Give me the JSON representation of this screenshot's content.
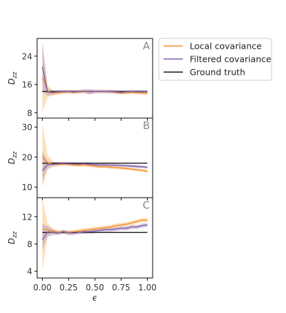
{
  "chart_data": {
    "type": "line",
    "xlabel": "ϵ",
    "colors": {
      "local": "#f28c28",
      "local_band": "#fbc98c",
      "filtered": "#7e5aa6",
      "filtered_band": "#b69cc4",
      "truth": "#111111"
    },
    "legend": {
      "placement": "outside-right",
      "entries": [
        {
          "label": "Local covariance",
          "color": "#f28c28"
        },
        {
          "label": "Filtered covariance",
          "color": "#7e5aa6"
        },
        {
          "label": "Ground truth",
          "color": "#111111"
        }
      ]
    },
    "x_ticks": [
      "0.00",
      "0.25",
      "0.50",
      "0.75",
      "1.00"
    ],
    "x_tick_values": [
      0,
      0.25,
      0.5,
      0.75,
      1.0
    ],
    "xlim": [
      -0.05,
      1.05
    ],
    "panels": [
      {
        "letter": "A",
        "ylabel": "D_zz",
        "ylim": [
          6.5,
          29
        ],
        "y_ticks": [
          "8",
          "16",
          "24"
        ],
        "y_tick_values": [
          8,
          16,
          24
        ],
        "truth": 14,
        "x": [
          0,
          0.05,
          0.1,
          0.15,
          0.2,
          0.25,
          0.3,
          0.35,
          0.4,
          0.45,
          0.5,
          0.55,
          0.6,
          0.65,
          0.7,
          0.75,
          0.8,
          0.85,
          0.9,
          0.95,
          1.0
        ],
        "series": [
          {
            "name": "Local covariance",
            "key": "local",
            "values": [
              18,
              14.2,
              13.5,
              13.7,
              13.8,
              13.9,
              13.8,
              13.9,
              14.0,
              13.9,
              14.0,
              14.0,
              14.0,
              13.9,
              13.8,
              13.6,
              13.7,
              13.8,
              13.7,
              13.6,
              13.5
            ],
            "lower": [
              8,
              12.5,
              12.8,
              13.1,
              13.3,
              13.4,
              13.3,
              13.4,
              13.5,
              13.4,
              13.5,
              13.5,
              13.5,
              13.4,
              13.3,
              13.1,
              13.2,
              13.3,
              13.2,
              13.1,
              13.0
            ],
            "upper": [
              28,
              15.9,
              14.2,
              14.3,
              14.3,
              14.4,
              14.3,
              14.4,
              14.5,
              14.4,
              14.5,
              14.5,
              14.5,
              14.4,
              14.3,
              14.1,
              14.2,
              14.3,
              14.2,
              14.1,
              14.0
            ]
          },
          {
            "name": "Filtered covariance",
            "key": "filtered",
            "values": [
              21,
              13.8,
              13.8,
              13.9,
              14.0,
              14.0,
              13.9,
              14.0,
              14.1,
              13.9,
              14.0,
              14.0,
              14.0,
              14.0,
              13.9,
              13.8,
              13.9,
              14.0,
              13.9,
              13.9,
              13.9
            ],
            "lower": [
              14,
              12.8,
              13.2,
              13.4,
              13.5,
              13.5,
              13.4,
              13.5,
              13.6,
              13.1,
              13.5,
              13.5,
              13.5,
              13.5,
              13.4,
              13.3,
              13.4,
              13.5,
              13.4,
              13.4,
              13.4
            ],
            "upper": [
              28,
              14.8,
              14.4,
              14.4,
              14.5,
              14.5,
              14.4,
              14.5,
              14.6,
              14.7,
              14.5,
              14.5,
              14.5,
              14.5,
              14.4,
              14.3,
              14.4,
              14.5,
              14.4,
              14.4,
              14.4
            ]
          }
        ]
      },
      {
        "letter": "B",
        "ylabel": "D_zz",
        "ylim": [
          6.5,
          33
        ],
        "y_ticks": [
          "10",
          "20",
          "30"
        ],
        "y_tick_values": [
          10,
          20,
          30
        ],
        "truth": 18,
        "x": [
          0,
          0.05,
          0.1,
          0.15,
          0.2,
          0.25,
          0.3,
          0.35,
          0.4,
          0.45,
          0.5,
          0.55,
          0.6,
          0.65,
          0.7,
          0.75,
          0.8,
          0.85,
          0.9,
          0.95,
          1.0
        ],
        "series": [
          {
            "name": "Local covariance",
            "key": "local",
            "values": [
              20,
              18.2,
              17.6,
              17.6,
              17.7,
              17.6,
              17.4,
              17.3,
              17.4,
              17.2,
              17.0,
              16.8,
              16.8,
              16.6,
              16.5,
              16.4,
              16.2,
              16.0,
              15.8,
              15.6,
              15.3
            ],
            "lower": [
              10,
              15.8,
              16.6,
              16.9,
              17.1,
              17.1,
              16.9,
              16.8,
              16.9,
              16.7,
              16.5,
              16.3,
              16.3,
              16.1,
              16.0,
              15.9,
              15.7,
              15.5,
              15.3,
              15.1,
              14.8
            ],
            "upper": [
              31,
              20.6,
              18.6,
              18.3,
              18.3,
              18.1,
              17.9,
              17.8,
              17.9,
              17.7,
              17.5,
              17.3,
              17.3,
              17.1,
              17.0,
              16.9,
              16.7,
              16.5,
              16.3,
              16.1,
              15.8
            ]
          },
          {
            "name": "Filtered covariance",
            "key": "filtered",
            "values": [
              15.5,
              17.5,
              17.6,
              17.8,
              17.9,
              17.8,
              17.7,
              17.7,
              17.8,
              17.6,
              17.5,
              17.4,
              17.4,
              17.3,
              17.3,
              17.2,
              17.1,
              17.0,
              16.9,
              16.8,
              16.6
            ],
            "lower": [
              12,
              16.4,
              17.0,
              17.3,
              17.4,
              17.3,
              17.2,
              17.2,
              17.3,
              17.1,
              17.0,
              16.9,
              16.9,
              16.8,
              16.8,
              16.7,
              16.6,
              16.5,
              16.4,
              16.3,
              16.1
            ],
            "upper": [
              22,
              18.6,
              18.2,
              18.3,
              18.4,
              18.3,
              18.2,
              18.2,
              18.3,
              18.1,
              18.0,
              17.9,
              17.9,
              17.8,
              17.8,
              17.7,
              17.6,
              17.5,
              17.4,
              17.3,
              17.1
            ]
          }
        ]
      },
      {
        "letter": "C",
        "ylabel": "D_zz",
        "ylim": [
          3,
          14.8
        ],
        "y_ticks": [
          "4",
          "8",
          "12"
        ],
        "y_tick_values": [
          4,
          8,
          12
        ],
        "truth": 9.7,
        "x": [
          0,
          0.05,
          0.1,
          0.15,
          0.2,
          0.25,
          0.3,
          0.35,
          0.4,
          0.45,
          0.5,
          0.55,
          0.6,
          0.65,
          0.7,
          0.75,
          0.8,
          0.85,
          0.9,
          0.95,
          1.0
        ],
        "series": [
          {
            "name": "Local covariance",
            "key": "local",
            "values": [
              10.2,
              10.1,
              9.9,
              9.7,
              9.8,
              9.7,
              9.8,
              9.9,
              10.0,
              10.1,
              10.2,
              10.3,
              10.4,
              10.5,
              10.7,
              10.8,
              10.9,
              11.1,
              11.3,
              11.5,
              11.5
            ],
            "lower": [
              4,
              9.2,
              9.5,
              9.4,
              9.5,
              9.4,
              9.5,
              9.6,
              9.7,
              9.8,
              9.9,
              10.0,
              10.1,
              10.2,
              10.4,
              10.5,
              10.6,
              10.8,
              11.0,
              11.2,
              11.2
            ],
            "upper": [
              14.7,
              11.0,
              10.3,
              10.0,
              10.1,
              10.0,
              10.1,
              10.2,
              10.3,
              10.4,
              10.5,
              10.6,
              10.7,
              10.8,
              11.0,
              11.1,
              11.2,
              11.4,
              11.6,
              11.8,
              11.8
            ]
          },
          {
            "name": "Filtered covariance",
            "key": "filtered",
            "values": [
              8.6,
              9.8,
              9.7,
              9.6,
              9.8,
              9.6,
              9.6,
              9.7,
              9.8,
              9.8,
              9.9,
              10.0,
              10.1,
              10.1,
              10.2,
              10.3,
              10.3,
              10.5,
              10.5,
              10.7,
              10.8
            ],
            "lower": [
              7.2,
              9.0,
              9.3,
              9.3,
              9.5,
              9.3,
              9.3,
              9.4,
              9.5,
              9.5,
              9.6,
              9.7,
              9.8,
              9.8,
              9.9,
              10.0,
              10.0,
              10.2,
              10.2,
              10.4,
              10.5
            ],
            "upper": [
              11.0,
              10.6,
              10.1,
              9.9,
              10.1,
              9.9,
              9.9,
              10.0,
              10.1,
              10.1,
              10.2,
              10.3,
              10.4,
              10.4,
              10.5,
              10.6,
              10.6,
              10.8,
              10.8,
              11.0,
              11.1
            ]
          }
        ]
      }
    ]
  }
}
